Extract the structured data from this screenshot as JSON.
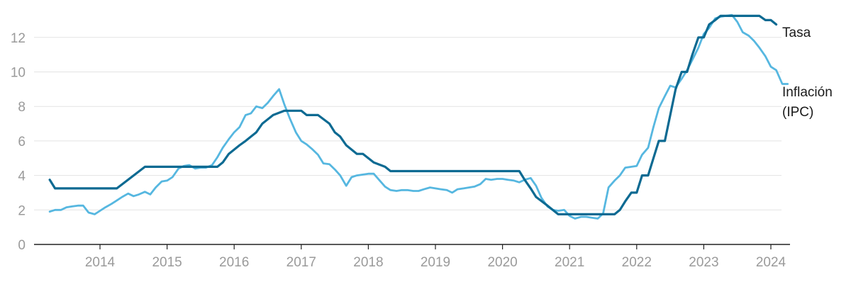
{
  "chart_data": {
    "type": "line",
    "title": "",
    "xlabel": "",
    "ylabel": "",
    "ylim": [
      0,
      13.4
    ],
    "xlim": [
      2013.2,
      2024.25
    ],
    "y_ticks": [
      "0",
      "2",
      "4",
      "6",
      "8",
      "10",
      "12"
    ],
    "x_ticks": [
      "2014",
      "2015",
      "2016",
      "2017",
      "2018",
      "2019",
      "2020",
      "2021",
      "2022",
      "2023",
      "2024"
    ],
    "grid": true,
    "colors": {
      "tasa": "#0d6a92",
      "inflacion": "#56b7e0",
      "grid": "#e3e3e3",
      "axis": "#222222"
    },
    "series": [
      {
        "key": "tasa",
        "name": "Tasa",
        "label_lines": [
          "Tasa"
        ],
        "points": [
          [
            2013.25,
            3.75
          ],
          [
            2013.33,
            3.25
          ],
          [
            2014.25,
            3.25
          ],
          [
            2014.67,
            4.5
          ],
          [
            2015.75,
            4.5
          ],
          [
            2015.83,
            4.75
          ],
          [
            2015.92,
            5.25
          ],
          [
            2016.0,
            5.5
          ],
          [
            2016.08,
            5.75
          ],
          [
            2016.17,
            6.0
          ],
          [
            2016.25,
            6.25
          ],
          [
            2016.33,
            6.5
          ],
          [
            2016.42,
            7.0
          ],
          [
            2016.58,
            7.5
          ],
          [
            2016.75,
            7.75
          ],
          [
            2017.0,
            7.75
          ],
          [
            2017.08,
            7.5
          ],
          [
            2017.25,
            7.5
          ],
          [
            2017.42,
            7.0
          ],
          [
            2017.5,
            6.5
          ],
          [
            2017.58,
            6.25
          ],
          [
            2017.67,
            5.75
          ],
          [
            2017.83,
            5.25
          ],
          [
            2017.92,
            5.25
          ],
          [
            2018.08,
            4.75
          ],
          [
            2018.25,
            4.5
          ],
          [
            2018.33,
            4.25
          ],
          [
            2020.25,
            4.25
          ],
          [
            2020.33,
            3.75
          ],
          [
            2020.42,
            3.25
          ],
          [
            2020.5,
            2.75
          ],
          [
            2020.67,
            2.25
          ],
          [
            2020.83,
            1.75
          ],
          [
            2021.67,
            1.75
          ],
          [
            2021.75,
            2.0
          ],
          [
            2021.83,
            2.5
          ],
          [
            2021.92,
            3.0
          ],
          [
            2022.0,
            3.0
          ],
          [
            2022.08,
            4.0
          ],
          [
            2022.17,
            4.0
          ],
          [
            2022.25,
            5.0
          ],
          [
            2022.33,
            6.0
          ],
          [
            2022.42,
            6.0
          ],
          [
            2022.5,
            7.5
          ],
          [
            2022.58,
            9.0
          ],
          [
            2022.67,
            10.0
          ],
          [
            2022.75,
            10.0
          ],
          [
            2022.83,
            11.0
          ],
          [
            2022.92,
            12.0
          ],
          [
            2023.0,
            12.0
          ],
          [
            2023.08,
            12.75
          ],
          [
            2023.17,
            13.0
          ],
          [
            2023.25,
            13.25
          ],
          [
            2023.75,
            13.25
          ],
          [
            2023.83,
            13.25
          ],
          [
            2023.92,
            13.0
          ],
          [
            2024.0,
            13.0
          ],
          [
            2024.08,
            12.75
          ]
        ]
      },
      {
        "key": "inflacion",
        "name": "Inflación (IPC)",
        "label_lines": [
          "Inflación",
          "(IPC)"
        ],
        "points": [
          [
            2013.25,
            1.9
          ],
          [
            2013.33,
            2.0
          ],
          [
            2013.42,
            2.0
          ],
          [
            2013.5,
            2.15
          ],
          [
            2013.58,
            2.2
          ],
          [
            2013.67,
            2.25
          ],
          [
            2013.75,
            2.25
          ],
          [
            2013.83,
            1.85
          ],
          [
            2013.92,
            1.75
          ],
          [
            2014.0,
            1.95
          ],
          [
            2014.08,
            2.15
          ],
          [
            2014.17,
            2.35
          ],
          [
            2014.25,
            2.55
          ],
          [
            2014.33,
            2.75
          ],
          [
            2014.42,
            2.95
          ],
          [
            2014.5,
            2.8
          ],
          [
            2014.58,
            2.9
          ],
          [
            2014.67,
            3.05
          ],
          [
            2014.75,
            2.9
          ],
          [
            2014.83,
            3.3
          ],
          [
            2014.92,
            3.65
          ],
          [
            2015.0,
            3.7
          ],
          [
            2015.08,
            3.9
          ],
          [
            2015.17,
            4.4
          ],
          [
            2015.25,
            4.55
          ],
          [
            2015.33,
            4.6
          ],
          [
            2015.42,
            4.4
          ],
          [
            2015.5,
            4.45
          ],
          [
            2015.58,
            4.45
          ],
          [
            2015.67,
            4.6
          ],
          [
            2015.75,
            5.05
          ],
          [
            2015.83,
            5.6
          ],
          [
            2015.92,
            6.1
          ],
          [
            2016.0,
            6.5
          ],
          [
            2016.08,
            6.8
          ],
          [
            2016.17,
            7.5
          ],
          [
            2016.25,
            7.6
          ],
          [
            2016.33,
            8.0
          ],
          [
            2016.42,
            7.9
          ],
          [
            2016.5,
            8.2
          ],
          [
            2016.58,
            8.6
          ],
          [
            2016.67,
            9.0
          ],
          [
            2016.75,
            8.1
          ],
          [
            2016.83,
            7.3
          ],
          [
            2016.92,
            6.5
          ],
          [
            2017.0,
            6.0
          ],
          [
            2017.08,
            5.8
          ],
          [
            2017.17,
            5.5
          ],
          [
            2017.25,
            5.2
          ],
          [
            2017.33,
            4.7
          ],
          [
            2017.42,
            4.65
          ],
          [
            2017.5,
            4.35
          ],
          [
            2017.58,
            4.0
          ],
          [
            2017.67,
            3.4
          ],
          [
            2017.75,
            3.9
          ],
          [
            2017.83,
            4.0
          ],
          [
            2017.92,
            4.05
          ],
          [
            2018.0,
            4.1
          ],
          [
            2018.08,
            4.1
          ],
          [
            2018.17,
            3.7
          ],
          [
            2018.25,
            3.35
          ],
          [
            2018.33,
            3.15
          ],
          [
            2018.42,
            3.1
          ],
          [
            2018.5,
            3.15
          ],
          [
            2018.58,
            3.15
          ],
          [
            2018.67,
            3.1
          ],
          [
            2018.75,
            3.1
          ],
          [
            2018.83,
            3.2
          ],
          [
            2018.92,
            3.3
          ],
          [
            2019.0,
            3.25
          ],
          [
            2019.08,
            3.2
          ],
          [
            2019.17,
            3.15
          ],
          [
            2019.25,
            3.0
          ],
          [
            2019.33,
            3.2
          ],
          [
            2019.42,
            3.25
          ],
          [
            2019.5,
            3.3
          ],
          [
            2019.58,
            3.35
          ],
          [
            2019.67,
            3.5
          ],
          [
            2019.75,
            3.8
          ],
          [
            2019.83,
            3.75
          ],
          [
            2019.92,
            3.8
          ],
          [
            2020.0,
            3.8
          ],
          [
            2020.08,
            3.75
          ],
          [
            2020.17,
            3.7
          ],
          [
            2020.25,
            3.6
          ],
          [
            2020.33,
            3.75
          ],
          [
            2020.42,
            3.85
          ],
          [
            2020.5,
            3.4
          ],
          [
            2020.58,
            2.7
          ],
          [
            2020.67,
            2.2
          ],
          [
            2020.75,
            2.0
          ],
          [
            2020.83,
            1.95
          ],
          [
            2020.92,
            2.0
          ],
          [
            2021.0,
            1.65
          ],
          [
            2021.08,
            1.5
          ],
          [
            2021.17,
            1.6
          ],
          [
            2021.25,
            1.6
          ],
          [
            2021.33,
            1.55
          ],
          [
            2021.42,
            1.5
          ],
          [
            2021.5,
            1.8
          ],
          [
            2021.58,
            3.3
          ],
          [
            2021.67,
            3.7
          ],
          [
            2021.75,
            4.0
          ],
          [
            2021.83,
            4.45
          ],
          [
            2021.92,
            4.5
          ],
          [
            2022.0,
            4.55
          ],
          [
            2022.08,
            5.2
          ],
          [
            2022.17,
            5.6
          ],
          [
            2022.25,
            6.8
          ],
          [
            2022.33,
            7.9
          ],
          [
            2022.42,
            8.6
          ],
          [
            2022.5,
            9.2
          ],
          [
            2022.58,
            9.1
          ],
          [
            2022.67,
            9.6
          ],
          [
            2022.75,
            10.1
          ],
          [
            2022.83,
            10.7
          ],
          [
            2022.92,
            11.4
          ],
          [
            2023.0,
            12.2
          ],
          [
            2023.08,
            12.55
          ],
          [
            2023.17,
            13.1
          ],
          [
            2023.25,
            13.2
          ],
          [
            2023.33,
            13.25
          ],
          [
            2023.42,
            13.3
          ],
          [
            2023.5,
            12.9
          ],
          [
            2023.58,
            12.3
          ],
          [
            2023.67,
            12.1
          ],
          [
            2023.75,
            11.8
          ],
          [
            2023.83,
            11.4
          ],
          [
            2023.92,
            10.9
          ],
          [
            2024.0,
            10.3
          ],
          [
            2024.08,
            10.1
          ],
          [
            2024.17,
            9.3
          ],
          [
            2024.25,
            9.3
          ]
        ]
      }
    ]
  }
}
